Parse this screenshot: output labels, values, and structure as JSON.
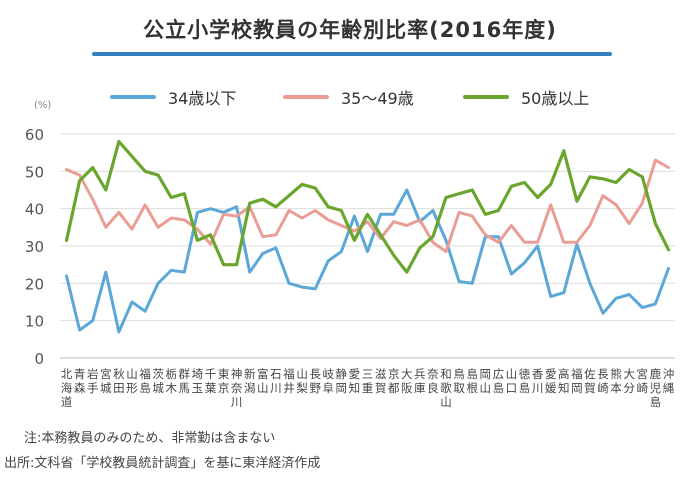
{
  "chart_data": {
    "type": "line",
    "title": "公立小学校教員の年齢別比率(2016年度)",
    "ylabel": "(%)",
    "ylim": [
      0,
      60
    ],
    "yticks": [
      0,
      10,
      20,
      30,
      40,
      50,
      60
    ],
    "grid": true,
    "legend_position": "top",
    "categories": [
      "北海道",
      "青森",
      "岩手",
      "宮城",
      "秋田",
      "山形",
      "福島",
      "茨城",
      "栃木",
      "群馬",
      "埼玉",
      "千葉",
      "東京",
      "神奈川",
      "新潟",
      "富山",
      "石川",
      "福井",
      "山梨",
      "長野",
      "岐阜",
      "静岡",
      "愛知",
      "三重",
      "滋賀",
      "京都",
      "大阪",
      "兵庫",
      "奈良",
      "和歌山",
      "鳥取",
      "島根",
      "岡山",
      "広島",
      "山口",
      "徳島",
      "香川",
      "愛媛",
      "高知",
      "福岡",
      "佐賀",
      "長崎",
      "熊本",
      "大分",
      "宮崎",
      "鹿児島",
      "沖縄"
    ],
    "series": [
      {
        "name": "34歳以下",
        "color": "#5aa7d8",
        "values": [
          22,
          7.5,
          10,
          23,
          7,
          15,
          12.5,
          20,
          23.5,
          23,
          39,
          40,
          39,
          40.5,
          23,
          28,
          29.5,
          20,
          19,
          18.5,
          26,
          28.5,
          38,
          28.5,
          38.5,
          38.5,
          45,
          36.5,
          39.5,
          31.5,
          20.5,
          20,
          32.5,
          32.5,
          22.5,
          25.5,
          30,
          16.5,
          17.5,
          30.5,
          20,
          12,
          16,
          17,
          13.5,
          14.5,
          24
        ]
      },
      {
        "name": "35〜49歳",
        "color": "#ea9d95",
        "values": [
          50.5,
          49,
          42.5,
          35,
          39,
          34.5,
          41,
          35,
          37.5,
          37,
          34.5,
          30.5,
          38.5,
          38,
          40.5,
          32.5,
          33,
          39.5,
          37.5,
          39.5,
          37,
          35.5,
          34,
          36.5,
          32,
          36.5,
          35.5,
          37,
          31,
          28.5,
          39,
          38,
          33,
          31,
          35.5,
          31,
          31,
          41,
          31,
          31,
          35.5,
          43.5,
          41,
          36,
          41.5,
          53,
          51
        ]
      },
      {
        "name": "50歳以上",
        "color": "#6aa52d",
        "values": [
          31.5,
          47.5,
          51,
          45,
          58,
          54,
          50,
          49,
          43,
          44,
          31.5,
          33,
          25,
          25,
          41.5,
          42.5,
          40.5,
          43.5,
          46.5,
          45.5,
          40.5,
          39.5,
          31.5,
          38.5,
          33,
          27.5,
          23,
          29.5,
          32.5,
          43,
          44,
          45,
          38.5,
          39.5,
          46,
          47,
          43,
          46.5,
          55.5,
          42,
          48.5,
          48,
          47,
          50.5,
          48.5,
          36,
          29
        ]
      }
    ]
  },
  "legend": [
    {
      "label": "34歳以下",
      "color": "#5aa7d8"
    },
    {
      "label": "35〜49歳",
      "color": "#ea9d95"
    },
    {
      "label": "50歳以上",
      "color": "#6aa52d"
    }
  ],
  "title_rule_color": "#2f7fc1",
  "note": "注:本務教員のみのため、非常勤は含まない",
  "source": "出所:文科省「学校教員統計調査」を基に東洋経済作成"
}
